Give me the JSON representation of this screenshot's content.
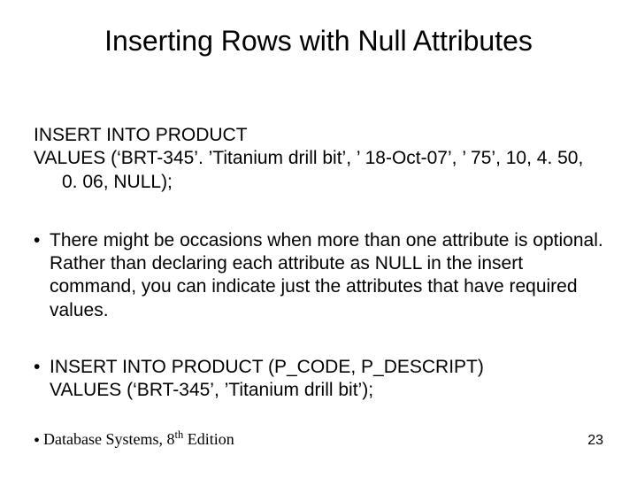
{
  "title": "Inserting Rows with Null Attributes",
  "sql1": {
    "line1": "INSERT INTO PRODUCT",
    "line2": "VALUES (‘BRT-345’. ’Titanium drill bit’, ’ 18-Oct-07’, ’ 75’, 10, 4. 50,",
    "line3": "0. 06, NULL);"
  },
  "bullet1": "There might be occasions when more than one attribute is optional. Rather than declaring each attribute as NULL in the insert command, you can indicate just the attributes that have required values.",
  "bullet2_line1": "INSERT INTO PRODUCT (P_CODE, P_DESCRIPT)",
  "bullet2_line2": "VALUES (‘BRT-345’, ’Titanium drill bit’);",
  "footer": {
    "book_prefix": "Database Systems, 8",
    "book_suffix": " Edition",
    "th": "th",
    "pagenum": "23"
  },
  "colors": {
    "text": "#000000",
    "background": "#ffffff"
  },
  "fontsizes": {
    "title": 32,
    "body": 21,
    "footer": 18,
    "pagenum": 16
  }
}
